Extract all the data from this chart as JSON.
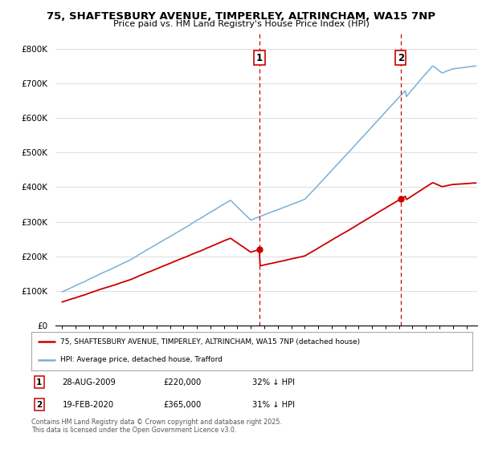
{
  "title_line1": "75, SHAFTESBURY AVENUE, TIMPERLEY, ALTRINCHAM, WA15 7NP",
  "title_line2": "Price paid vs. HM Land Registry's House Price Index (HPI)",
  "background_color": "#ffffff",
  "plot_bg_color": "#ffffff",
  "grid_color": "#dddddd",
  "line1_color": "#cc0000",
  "line2_color": "#7bafd4",
  "vline_color": "#cc0000",
  "yr1": 2009.65,
  "yr2": 2020.12,
  "annotation1_price": 220000,
  "annotation2_price": 365000,
  "legend_line1": "75, SHAFTESBURY AVENUE, TIMPERLEY, ALTRINCHAM, WA15 7NP (detached house)",
  "legend_line2": "HPI: Average price, detached house, Trafford",
  "ann1_date": "28-AUG-2009",
  "ann2_date": "19-FEB-2020",
  "ann1_price": "£220,000",
  "ann2_price": "£365,000",
  "ann1_pct": "32% ↓ HPI",
  "ann2_pct": "31% ↓ HPI",
  "footer": "Contains HM Land Registry data © Crown copyright and database right 2025.\nThis data is licensed under the Open Government Licence v3.0.",
  "ylim_min": 0,
  "ylim_max": 850000,
  "xlim_min": 1994.5,
  "xlim_max": 2025.8,
  "yticks": [
    0,
    100000,
    200000,
    300000,
    400000,
    500000,
    600000,
    700000,
    800000
  ],
  "ytick_labels": [
    "£0",
    "£100K",
    "£200K",
    "£300K",
    "£400K",
    "£500K",
    "£600K",
    "£700K",
    "£800K"
  ],
  "xticks": [
    1995,
    1996,
    1997,
    1998,
    1999,
    2000,
    2001,
    2002,
    2003,
    2004,
    2005,
    2006,
    2007,
    2008,
    2009,
    2010,
    2011,
    2012,
    2013,
    2014,
    2015,
    2016,
    2017,
    2018,
    2019,
    2020,
    2021,
    2022,
    2023,
    2024,
    2025
  ]
}
